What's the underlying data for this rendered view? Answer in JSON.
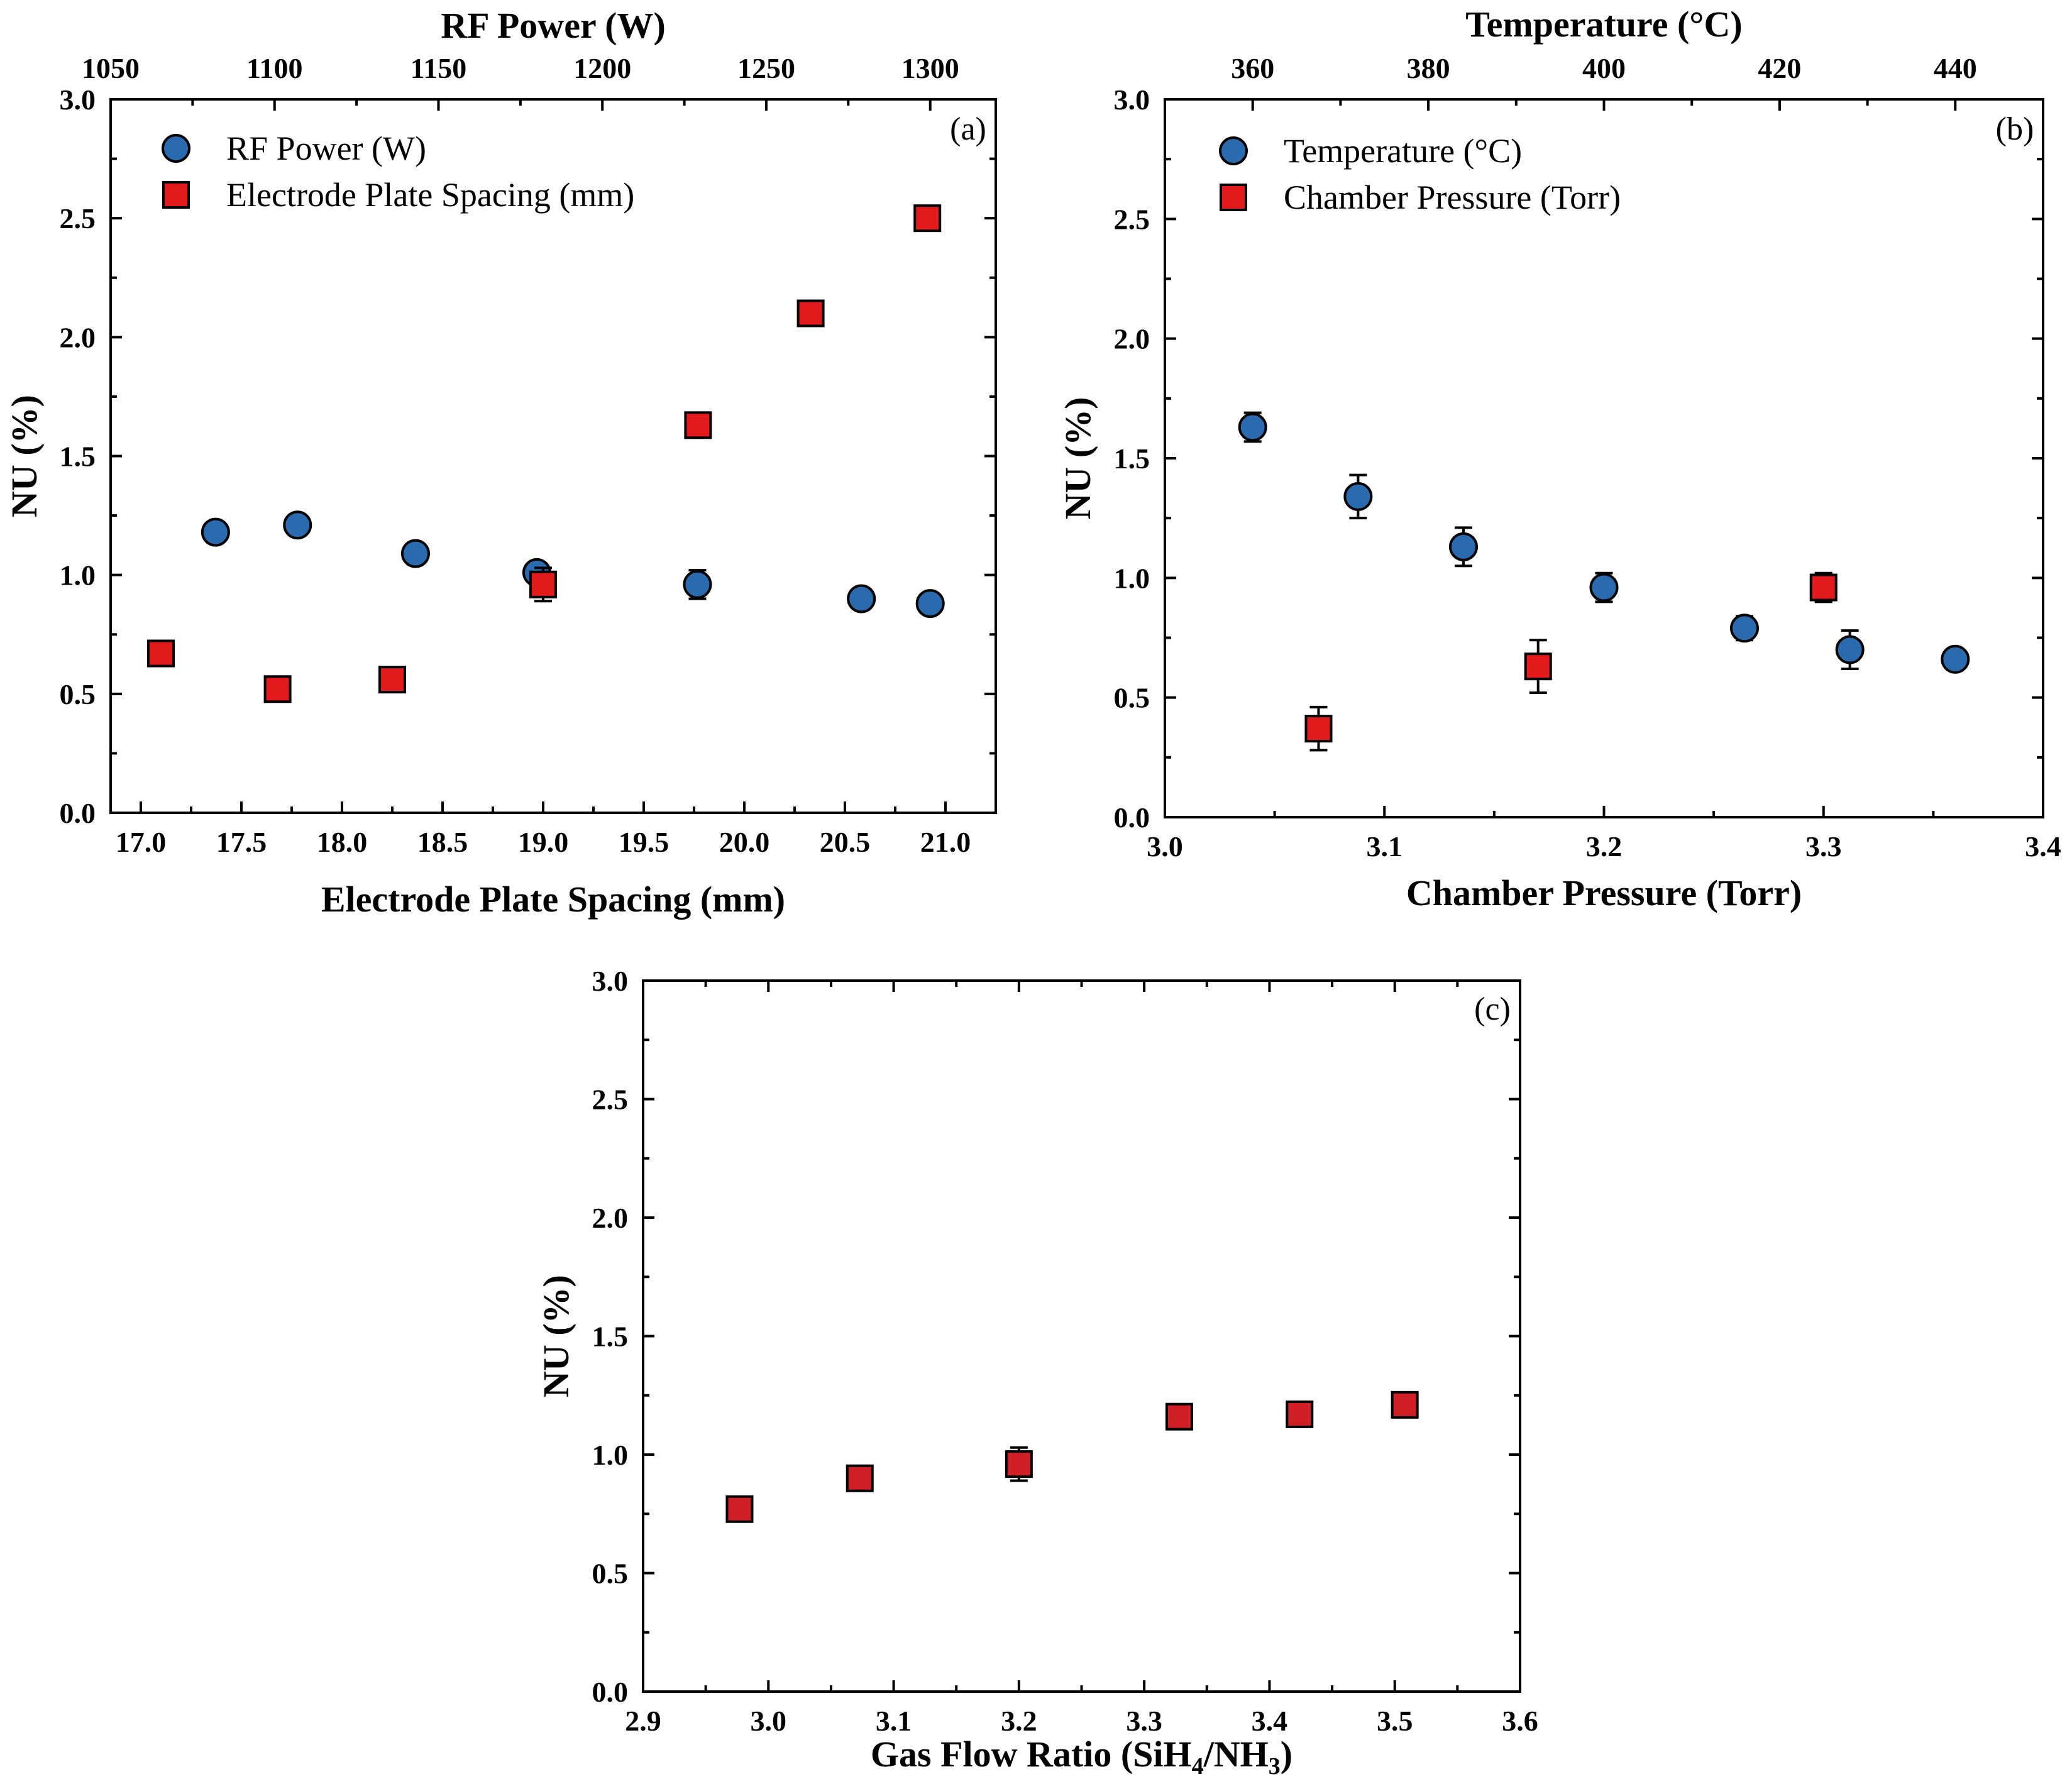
{
  "colors": {
    "circle_fill": "#2a6bb0",
    "square_fill": "#e31a1c",
    "square_fill_c": "#d11f26",
    "stroke": "#000000"
  },
  "chart_data": [
    {
      "type": "scatter",
      "panel_label": "(a)",
      "ylabel": "NU (%)",
      "xlabel": "Electrode Plate Spacing (mm)",
      "x2label": "RF Power (W)",
      "ylim": [
        0.0,
        3.0
      ],
      "xlim": [
        16.85,
        21.25
      ],
      "x2lim": [
        1050,
        1320
      ],
      "yticks": [
        "0.0",
        "0.5",
        "1.0",
        "1.5",
        "2.0",
        "2.5",
        "3.0"
      ],
      "xticks": [
        "17.0",
        "17.5",
        "18.0",
        "18.5",
        "19.0",
        "19.5",
        "20.0",
        "20.5",
        "21.0"
      ],
      "x2ticks": [
        "1050",
        "1100",
        "1150",
        "1200",
        "1250",
        "1300"
      ],
      "legend": [
        "RF Power (W)",
        "Electrode Plate Spacing (mm)"
      ],
      "legend_position": "top-left",
      "series": [
        {
          "name": "RF Power (W)",
          "marker": "circle",
          "axis": "top",
          "x": [
            1082,
            1107,
            1143,
            1180,
            1229,
            1279,
            1300
          ],
          "y": [
            1.18,
            1.21,
            1.09,
            1.01,
            0.96,
            0.9,
            0.88
          ],
          "err": [
            0,
            0,
            0,
            0,
            0.06,
            0,
            0
          ]
        },
        {
          "name": "Electrode Plate Spacing (mm)",
          "marker": "square",
          "axis": "bottom",
          "x": [
            17.1,
            17.68,
            18.25,
            19.0,
            19.77,
            20.33,
            20.91
          ],
          "y": [
            0.67,
            0.52,
            0.56,
            0.96,
            1.63,
            2.1,
            2.5
          ],
          "err": [
            0,
            0,
            0,
            0.07,
            0,
            0,
            0
          ]
        }
      ]
    },
    {
      "type": "scatter",
      "panel_label": "(b)",
      "ylabel": "NU (%)",
      "xlabel": "Chamber Pressure (Torr)",
      "x2label": "Temperature (°C)",
      "ylim": [
        0.0,
        3.0
      ],
      "xlim": [
        3.0,
        3.4
      ],
      "x2lim": [
        350,
        450
      ],
      "yticks": [
        "0.0",
        "0.5",
        "1.0",
        "1.5",
        "2.0",
        "2.5",
        "3.0"
      ],
      "xticks": [
        "3.0",
        "3.1",
        "3.2",
        "3.3",
        "3.4"
      ],
      "x2ticks": [
        "360",
        "380",
        "400",
        "420",
        "440"
      ],
      "legend": [
        "Temperature (°C)",
        "Chamber Pressure (Torr)"
      ],
      "legend_position": "top-left",
      "series": [
        {
          "name": "Temperature (°C)",
          "marker": "circle",
          "axis": "top",
          "x": [
            360,
            372,
            384,
            400,
            416,
            428,
            440
          ],
          "y": [
            1.63,
            1.34,
            1.13,
            0.96,
            0.79,
            0.7,
            0.66
          ],
          "err": [
            0.06,
            0.09,
            0.08,
            0.06,
            0.05,
            0.08,
            0
          ]
        },
        {
          "name": "Chamber Pressure (Torr)",
          "marker": "square",
          "axis": "bottom",
          "x": [
            3.07,
            3.17,
            3.3
          ],
          "y": [
            0.37,
            0.63,
            0.96
          ],
          "err": [
            0.09,
            0.11,
            0.06
          ]
        }
      ]
    },
    {
      "type": "scatter",
      "panel_label": "(c)",
      "ylabel": "NU (%)",
      "xlabel": "Gas Flow Ratio (SiH₄/NH₃)",
      "ylim": [
        0.0,
        3.0
      ],
      "xlim": [
        2.9,
        3.6
      ],
      "yticks": [
        "0.0",
        "0.5",
        "1.0",
        "1.5",
        "2.0",
        "2.5",
        "3.0"
      ],
      "xticks": [
        "2.9",
        "3.0",
        "3.1",
        "3.2",
        "3.3",
        "3.4",
        "3.5",
        "3.6"
      ],
      "series": [
        {
          "name": "Gas Flow Ratio",
          "marker": "square",
          "axis": "bottom",
          "x": [
            2.977,
            3.073,
            3.2,
            3.328,
            3.424,
            3.508
          ],
          "y": [
            0.77,
            0.9,
            0.96,
            1.16,
            1.17,
            1.21
          ],
          "err": [
            0,
            0,
            0.07,
            0,
            0,
            0
          ]
        }
      ]
    }
  ]
}
